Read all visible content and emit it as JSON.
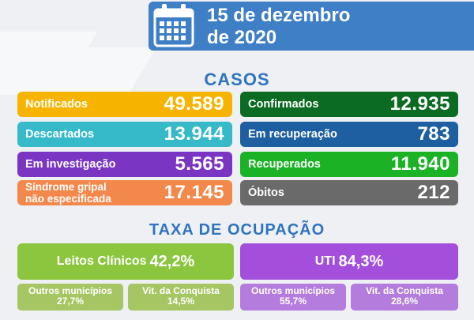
{
  "header": {
    "date_line1": "15 de dezembro",
    "date_line2": "de 2020"
  },
  "casos": {
    "title": "CASOS",
    "left": [
      {
        "label": "Notificados",
        "value": "49.589",
        "color": "#f6b400"
      },
      {
        "label": "Descartados",
        "value": "13.944",
        "color": "#36b9c9"
      },
      {
        "label": "Em investigação",
        "value": "5.565",
        "color": "#7a36c3"
      },
      {
        "label": "Síndrome gripal\nnão especificada",
        "value": "17.145",
        "color": "#f2884b"
      }
    ],
    "right": [
      {
        "label": "Confirmados",
        "value": "12.935",
        "color": "#0c6b22"
      },
      {
        "label": "Em recuperação",
        "value": "783",
        "color": "#1d5fa0"
      },
      {
        "label": "Recuperados",
        "value": "11.940",
        "color": "#1bb226"
      },
      {
        "label": "Óbitos",
        "value": "212",
        "color": "#6a6a6a"
      }
    ]
  },
  "ocupacao": {
    "title": "TAXA DE OCUPAÇÃO",
    "leitos": {
      "label": "Leitos Clínicos",
      "value": "42,2%",
      "color": "#8cc63f",
      "subs": [
        {
          "label": "Outros municípios",
          "value": "27,7%"
        },
        {
          "label": "Vit. da Conquista",
          "value": "14,5%"
        }
      ],
      "sub_color": "#a6c663"
    },
    "uti": {
      "label": "UTI",
      "value": "84,3%",
      "color": "#a34fdb",
      "subs": [
        {
          "label": "Outros municípios",
          "value": "55,7%"
        },
        {
          "label": "Vit. da Conquista",
          "value": "28,6%"
        }
      ],
      "sub_color": "#b47cdc"
    }
  }
}
